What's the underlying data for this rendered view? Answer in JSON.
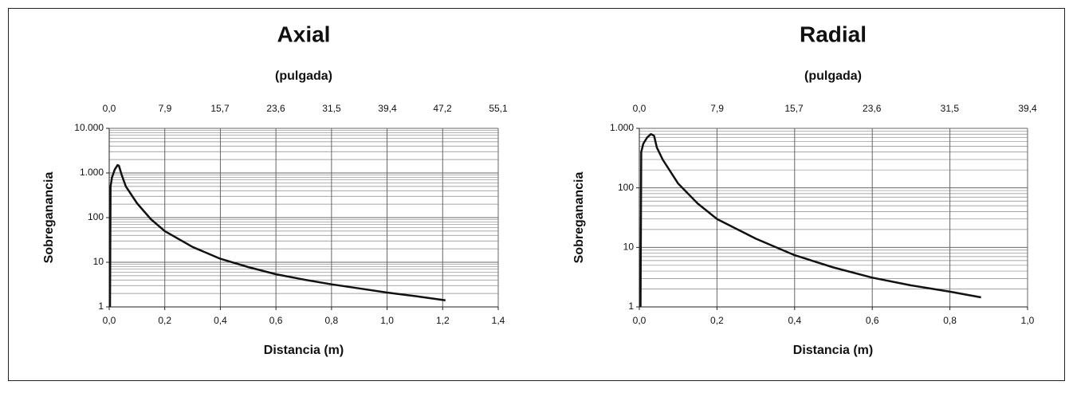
{
  "chart_data": [
    {
      "type": "line",
      "title": "Axial",
      "x2label": "(pulgada)",
      "xlabel": "Distancia (m)",
      "ylabel": "Sobreganancia",
      "log_y": true,
      "grid": true,
      "color": "#111111",
      "xlim": [
        0,
        1.4
      ],
      "xticks": [
        {
          "value": 0,
          "label": "0,0"
        },
        {
          "value": 0.2,
          "label": "0,2"
        },
        {
          "value": 0.4,
          "label": "0,4"
        },
        {
          "value": 0.6,
          "label": "0,6"
        },
        {
          "value": 0.8,
          "label": "0,8"
        },
        {
          "value": 1.0,
          "label": "1,0"
        },
        {
          "value": 1.2,
          "label": "1,2"
        },
        {
          "value": 1.4,
          "label": "1,4"
        }
      ],
      "x2lim": [
        0,
        55.1
      ],
      "x2ticks": [
        {
          "value": 0,
          "label": "0,0"
        },
        {
          "value": 7.9,
          "label": "7,9"
        },
        {
          "value": 15.7,
          "label": "15,7"
        },
        {
          "value": 23.6,
          "label": "23,6"
        },
        {
          "value": 31.5,
          "label": "31,5"
        },
        {
          "value": 39.4,
          "label": "39,4"
        },
        {
          "value": 47.2,
          "label": "47,2"
        },
        {
          "value": 55.1,
          "label": "55,1"
        }
      ],
      "ylim": [
        1,
        10000
      ],
      "yticks": [
        1,
        10,
        100,
        {
          "value": 1000,
          "label": "1.000"
        },
        {
          "value": 10000,
          "label": "10.000"
        }
      ],
      "yminorticks": [
        2,
        3,
        4,
        5,
        6,
        7,
        8,
        9,
        20,
        30,
        40,
        50,
        60,
        70,
        80,
        90,
        200,
        300,
        400,
        500,
        600,
        700,
        800,
        900,
        2000,
        3000,
        4000,
        5000,
        6000,
        7000,
        8000,
        9000
      ],
      "x": [
        0.003,
        0.005,
        0.01,
        0.02,
        0.03,
        0.035,
        0.045,
        0.06,
        0.1,
        0.15,
        0.2,
        0.3,
        0.4,
        0.5,
        0.6,
        0.7,
        0.8,
        0.9,
        1.0,
        1.1,
        1.21
      ],
      "values": [
        1,
        500,
        800,
        1200,
        1500,
        1450,
        900,
        500,
        210,
        92,
        50,
        22,
        12,
        7.8,
        5.4,
        4.1,
        3.2,
        2.6,
        2.1,
        1.75,
        1.4
      ]
    },
    {
      "type": "line",
      "title": "Radial",
      "x2label": "(pulgada)",
      "xlabel": "Distancia (m)",
      "ylabel": "Sobreganancia",
      "log_y": true,
      "grid": true,
      "color": "#111111",
      "xlim": [
        0,
        1.0
      ],
      "xticks": [
        {
          "value": 0,
          "label": "0,0"
        },
        {
          "value": 0.2,
          "label": "0,2"
        },
        {
          "value": 0.4,
          "label": "0,4"
        },
        {
          "value": 0.6,
          "label": "0,6"
        },
        {
          "value": 0.8,
          "label": "0,8"
        },
        {
          "value": 1.0,
          "label": "1,0"
        }
      ],
      "x2lim": [
        0,
        39.4
      ],
      "x2ticks": [
        {
          "value": 0,
          "label": "0,0"
        },
        {
          "value": 7.9,
          "label": "7,9"
        },
        {
          "value": 15.7,
          "label": "15,7"
        },
        {
          "value": 23.6,
          "label": "23,6"
        },
        {
          "value": 31.5,
          "label": "31,5"
        },
        {
          "value": 39.4,
          "label": "39,4"
        }
      ],
      "ylim": [
        1,
        1000
      ],
      "yticks": [
        1,
        10,
        100,
        {
          "value": 1000,
          "label": "1.000"
        }
      ],
      "yminorticks": [
        2,
        3,
        4,
        5,
        6,
        7,
        8,
        9,
        20,
        30,
        40,
        50,
        60,
        70,
        80,
        90,
        200,
        300,
        400,
        500,
        600,
        700,
        800,
        900
      ],
      "x": [
        0.003,
        0.005,
        0.01,
        0.02,
        0.03,
        0.038,
        0.045,
        0.06,
        0.1,
        0.15,
        0.2,
        0.3,
        0.4,
        0.5,
        0.6,
        0.7,
        0.8,
        0.88
      ],
      "values": [
        1,
        400,
        550,
        700,
        800,
        750,
        480,
        300,
        118,
        55,
        30,
        14,
        7.4,
        4.6,
        3.1,
        2.3,
        1.8,
        1.45
      ]
    }
  ]
}
